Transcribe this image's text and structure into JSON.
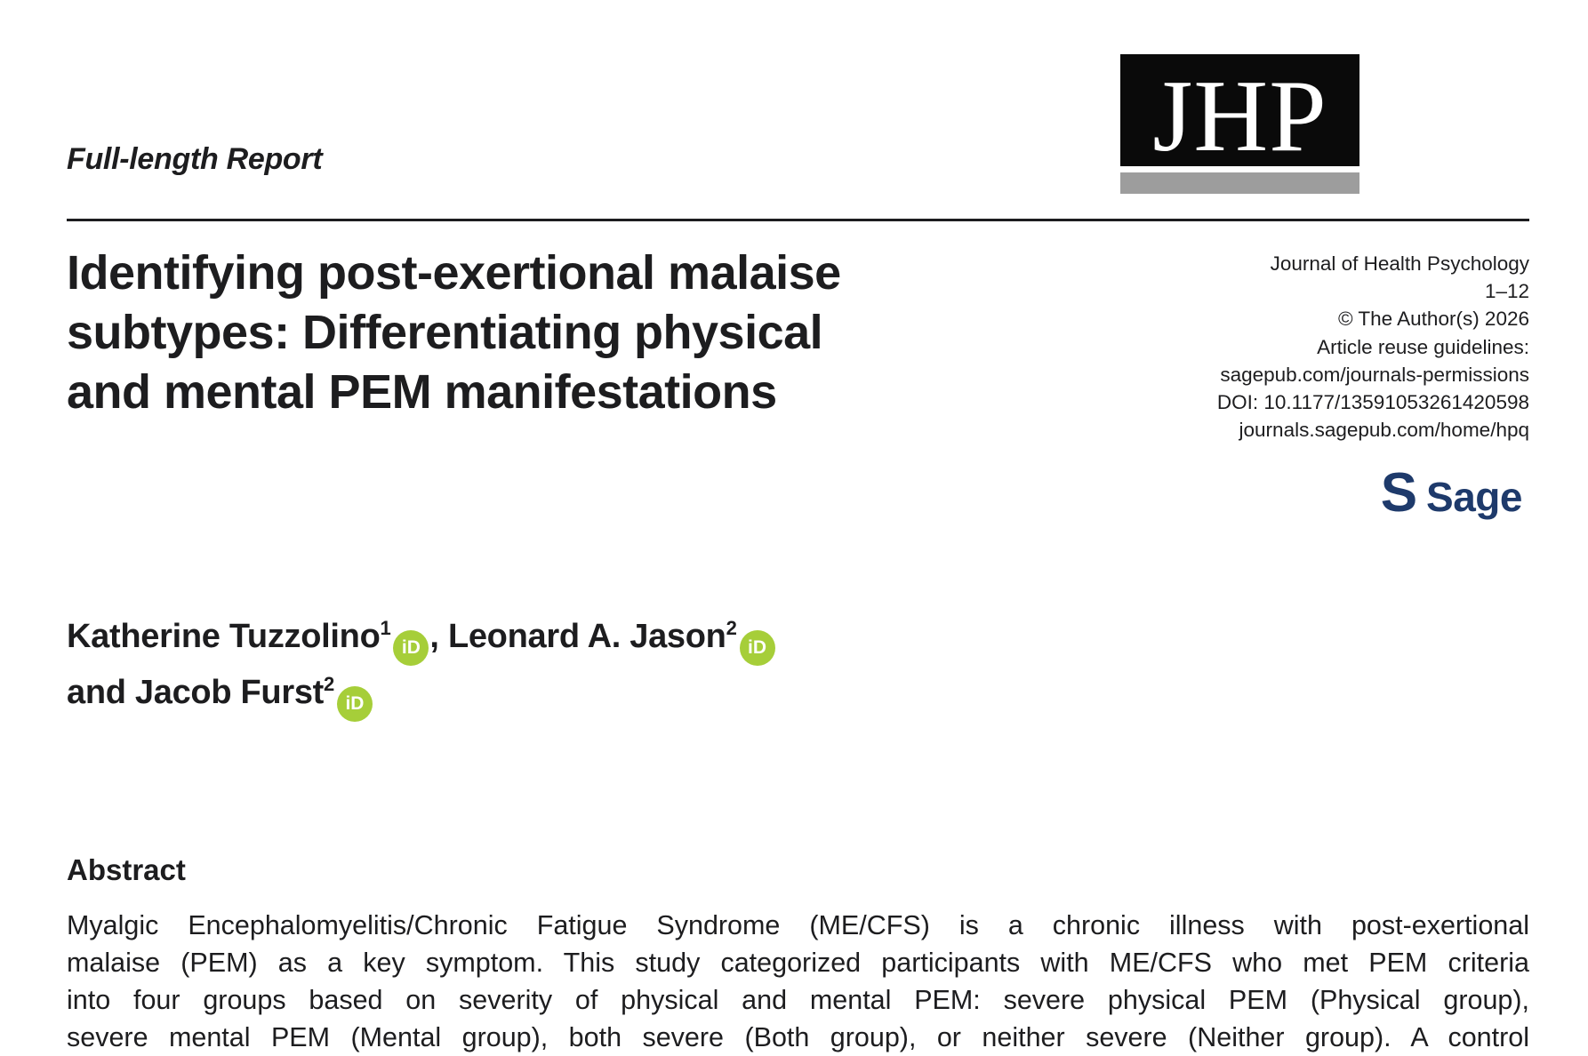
{
  "header": {
    "category": "Full-length Report",
    "logo_text": "JHP"
  },
  "journal_info": {
    "lines": [
      "Journal of Health Psychology",
      "1–12",
      "© The Author(s) 2026",
      "Article reuse guidelines:",
      "sagepub.com/journals-permissions",
      "DOI: 10.1177/13591053261420598",
      "journals.sagepub.com/home/hpq"
    ]
  },
  "sage": {
    "mark": "S",
    "wordmark": "Sage"
  },
  "title": {
    "lines": [
      "Identifying post-exertional malaise",
      "subtypes: Differentiating physical",
      "and mental PEM manifestations"
    ]
  },
  "authors": {
    "list": [
      {
        "name": "Katherine Tuzzolino",
        "affiliation": "1"
      },
      {
        "name": "Leonard A. Jason",
        "affiliation": "2"
      },
      {
        "name": "Jacob Furst",
        "affiliation": "2"
      }
    ],
    "separator": ", ",
    "conjunction": "and ",
    "orcid_label": "iD"
  },
  "abstract": {
    "heading": "Abstract",
    "lines": [
      "Myalgic Encephalomyelitis/Chronic Fatigue Syndrome (ME/CFS) is a chronic illness with post-exertional",
      "malaise (PEM) as a key symptom. This study categorized participants with ME/CFS who met PEM criteria",
      "into four groups based on severity of physical and mental PEM: severe physical PEM (Physical group),",
      "severe mental PEM (Mental group), both severe (Both group), or neither severe (Neither group). A control"
    ]
  },
  "colors": {
    "orcid_green": "#A6CE39",
    "sage_navy": "#1E3A6B",
    "logo_bar_gray": "#9D9D9D",
    "text": "#1D1D1F"
  }
}
